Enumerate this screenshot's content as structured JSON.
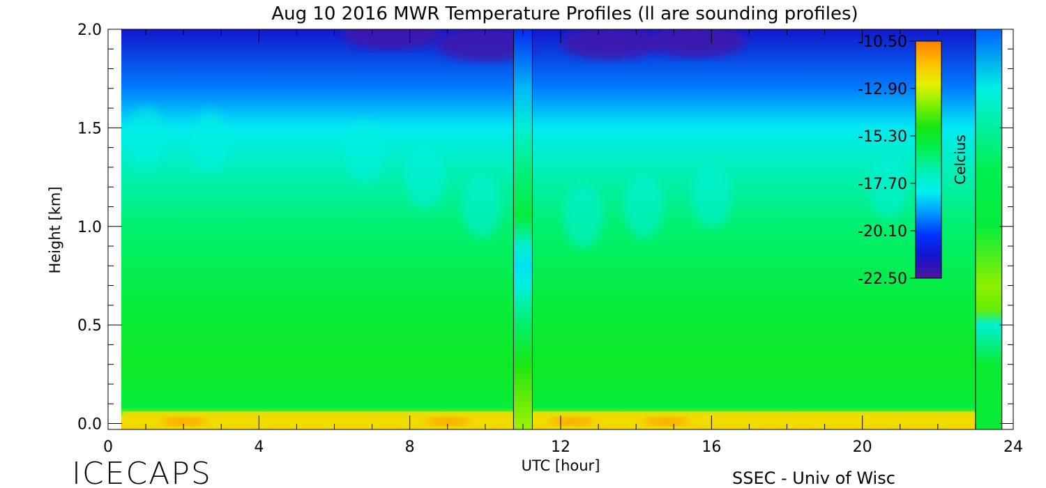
{
  "chart_data": {
    "type": "heatmap",
    "title": "Aug 10 2016 MWR Temperature Profiles (ll are sounding profiles)",
    "xlabel": "UTC [hour]",
    "ylabel": "Height [km]",
    "xlim": [
      0,
      24
    ],
    "ylim": [
      -0.03,
      2.0
    ],
    "x_ticks": [
      0,
      4,
      8,
      12,
      16,
      20,
      24
    ],
    "x_tick_labels": [
      "0",
      "4",
      "8",
      "12",
      "16",
      "20",
      "24"
    ],
    "y_ticks": [
      0.0,
      0.5,
      1.0,
      1.5,
      2.0
    ],
    "y_tick_labels": [
      "0.0",
      "0.5",
      "1.0",
      "1.5",
      "2.0"
    ],
    "data_x_range": [
      0.4,
      23.7
    ],
    "colorbar": {
      "label": "Celcius",
      "range": [
        -22.5,
        -10.5
      ],
      "ticks": [
        -10.5,
        -12.9,
        -15.3,
        -17.7,
        -20.1,
        -22.5
      ],
      "tick_labels": [
        "-10.50",
        "-12.90",
        "-15.30",
        "-17.70",
        "-20.10",
        "-22.50"
      ],
      "colors_high_to_low": [
        "#ff8000",
        "#ffc000",
        "#e6f000",
        "#7cf000",
        "#14e614",
        "#00f050",
        "#00f0b4",
        "#00f0f0",
        "#0096ff",
        "#0032ff",
        "#1414c8",
        "#5014a0"
      ]
    },
    "approx_temperature_by_height_km": [
      {
        "height": 0.0,
        "temperature": -11.8
      },
      {
        "height": 0.03,
        "temperature": -12.5
      },
      {
        "height": 0.08,
        "temperature": -15.6
      },
      {
        "height": 0.3,
        "temperature": -15.2
      },
      {
        "height": 0.6,
        "temperature": -15.6
      },
      {
        "height": 1.0,
        "temperature": -16.3
      },
      {
        "height": 1.3,
        "temperature": -17.2
      },
      {
        "height": 1.5,
        "temperature": -18.2
      },
      {
        "height": 1.7,
        "temperature": -19.5
      },
      {
        "height": 2.0,
        "temperature": -21.3
      }
    ],
    "sounding_profiles": [
      {
        "utc_start": 10.75,
        "utc_end": 11.25,
        "profile": [
          {
            "height": 0.0,
            "temperature": -13.5
          },
          {
            "height": 0.3,
            "temperature": -14.8
          },
          {
            "height": 0.5,
            "temperature": -16.2
          },
          {
            "height": 0.7,
            "temperature": -17.8
          },
          {
            "height": 0.8,
            "temperature": -18.3
          },
          {
            "height": 0.9,
            "temperature": -17.5
          },
          {
            "height": 1.05,
            "temperature": -15.6
          },
          {
            "height": 1.3,
            "temperature": -16.5
          },
          {
            "height": 1.5,
            "temperature": -17.6
          },
          {
            "height": 1.7,
            "temperature": -18.8
          },
          {
            "height": 2.0,
            "temperature": -20.6
          }
        ]
      },
      {
        "utc_start": 23.0,
        "utc_end": 23.7,
        "profile": [
          {
            "height": 0.0,
            "temperature": -15.5
          },
          {
            "height": 0.3,
            "temperature": -15.4
          },
          {
            "height": 0.5,
            "temperature": -17.6
          },
          {
            "height": 0.58,
            "temperature": -14.0
          },
          {
            "height": 0.7,
            "temperature": -13.6
          },
          {
            "height": 1.0,
            "temperature": -15.6
          },
          {
            "height": 1.3,
            "temperature": -16.0
          },
          {
            "height": 1.5,
            "temperature": -16.8
          },
          {
            "height": 1.7,
            "temperature": -17.9
          },
          {
            "height": 2.0,
            "temperature": -19.8
          }
        ]
      }
    ]
  },
  "footer": {
    "left_label": "ICECAPS",
    "right_label": "SSEC - Univ of Wisc"
  }
}
